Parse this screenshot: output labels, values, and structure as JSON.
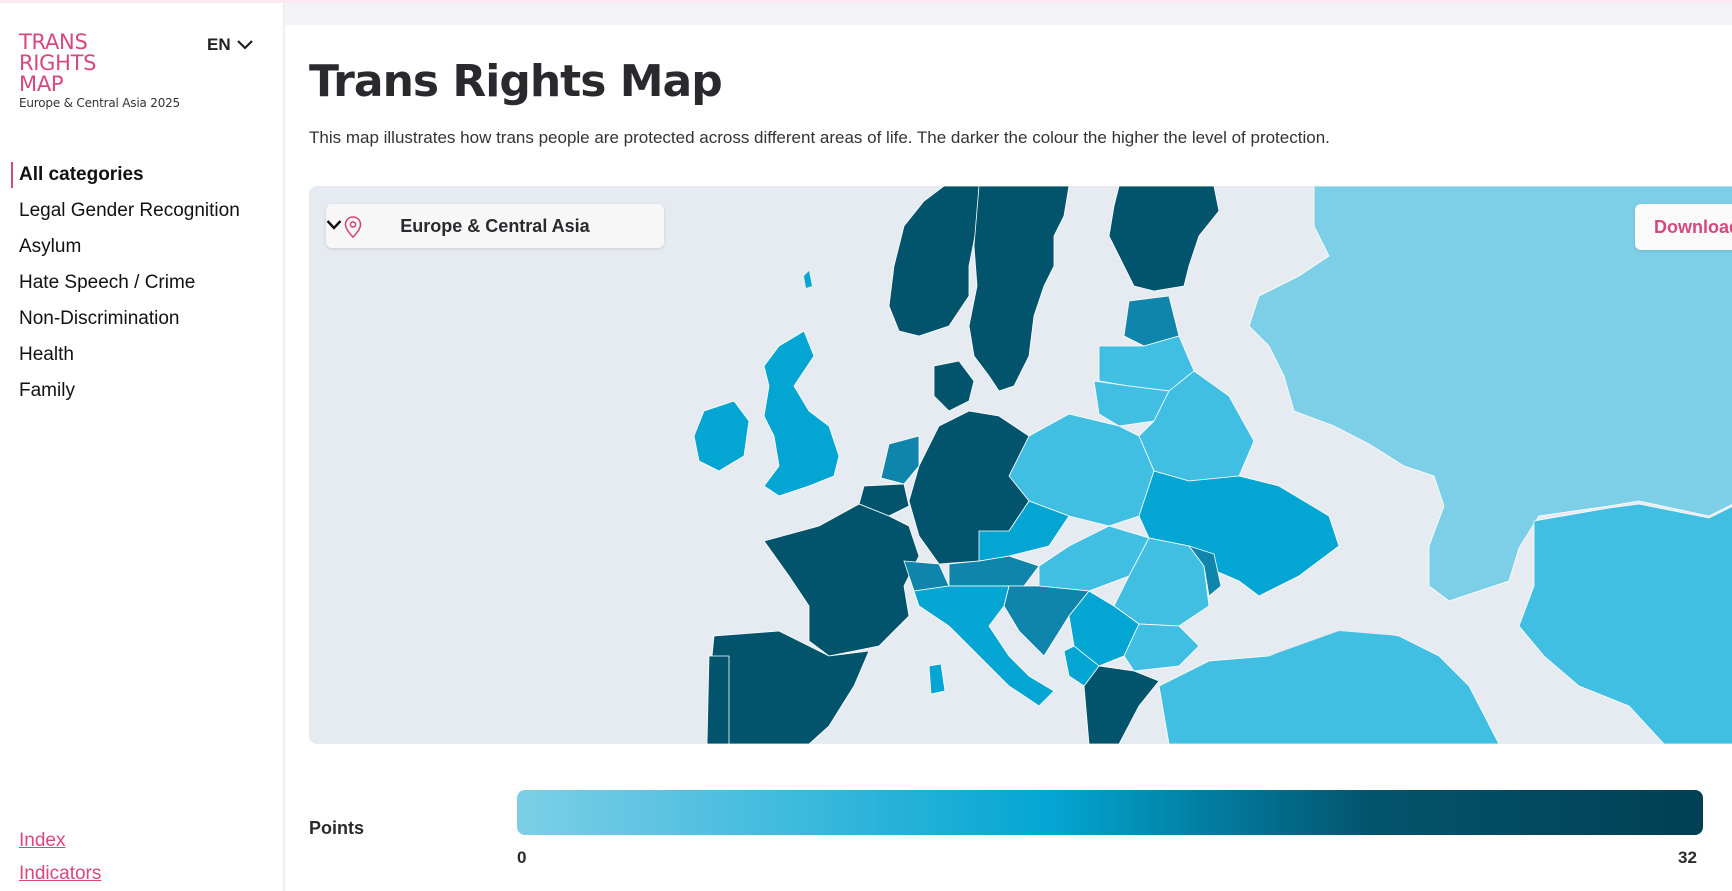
{
  "brand": {
    "logo_lines": [
      "TRANS",
      "RIGHTS",
      "MAP"
    ],
    "subtitle": "Europe & Central Asia 2025",
    "color": "#d6487e"
  },
  "language": {
    "label": "EN",
    "icon": "chevron-down-icon"
  },
  "nav": {
    "items": [
      {
        "label": "All categories",
        "active": true
      },
      {
        "label": "Legal Gender Recognition",
        "active": false
      },
      {
        "label": "Asylum",
        "active": false
      },
      {
        "label": "Hate Speech / Crime",
        "active": false
      },
      {
        "label": "Non-Discrimination",
        "active": false
      },
      {
        "label": "Health",
        "active": false
      },
      {
        "label": "Family",
        "active": false
      }
    ],
    "footer_links": [
      "Index",
      "Indicators"
    ]
  },
  "main": {
    "title": "Trans Rights Map",
    "description": "This map illustrates how trans people are protected across different areas of life. The darker the colour the higher the level of protection."
  },
  "map": {
    "region_select": {
      "value": "Europe & Central Asia",
      "icon": "map-pin-icon"
    },
    "download_label": "Download",
    "colors": {
      "background": "#e6eaf1",
      "lightest": "#7dcfe7",
      "light": "#40bfe2",
      "medium": "#03a6d3",
      "medium_dark": "#0f85ab",
      "dark": "#02546d"
    }
  },
  "legend": {
    "label": "Points",
    "min": "0",
    "max": "32",
    "gradient": [
      "#7dcfe7",
      "#03a6d3",
      "#02546d",
      "#023f52"
    ]
  }
}
